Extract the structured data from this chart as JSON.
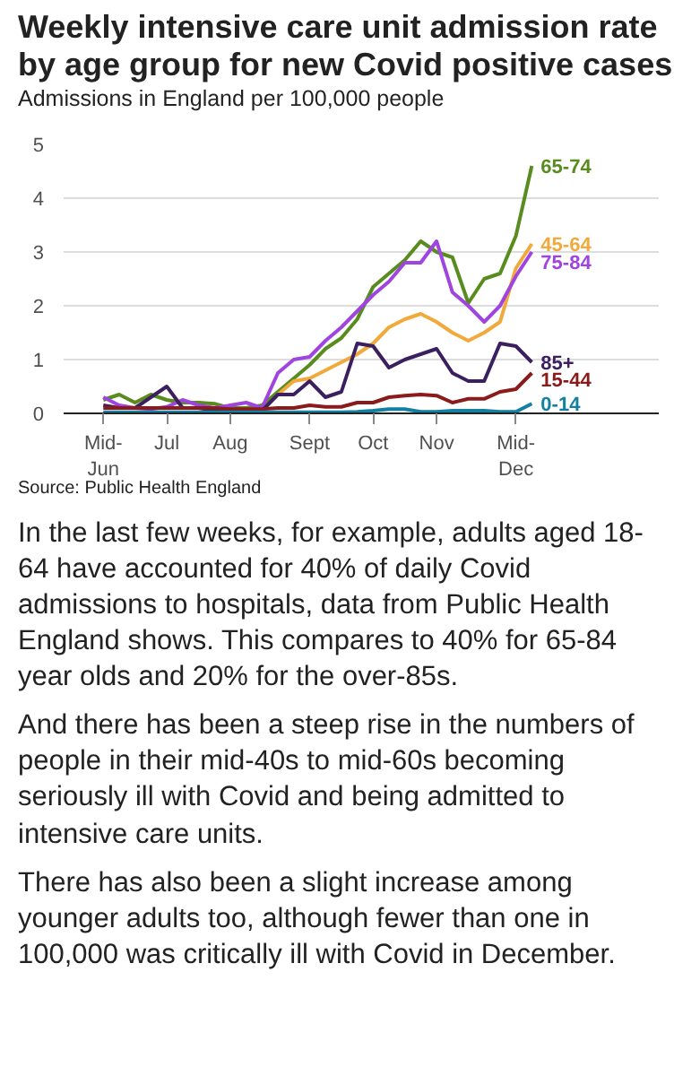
{
  "chart_data": {
    "type": "line",
    "title": "Weekly intensive care unit admission rate by age group for new Covid positive cases",
    "subtitle": "Admissions in England per 100,000 people",
    "categories": [
      "Mid-Jun",
      null,
      null,
      null,
      "Jul",
      null,
      null,
      null,
      "Aug",
      null,
      null,
      null,
      null,
      "Sept",
      null,
      null,
      null,
      "Oct",
      null,
      null,
      null,
      "Nov",
      null,
      null,
      null,
      null,
      "Mid-Dec",
      null
    ],
    "ylim": [
      0,
      5
    ],
    "yticks": [
      0,
      1,
      2,
      3,
      4,
      5
    ],
    "grid": "y",
    "series": [
      {
        "name": "65-74",
        "color": "#588c1e",
        "values": [
          0.25,
          0.35,
          0.2,
          0.35,
          0.25,
          0.2,
          0.2,
          0.18,
          0.1,
          0.1,
          0.15,
          0.4,
          0.65,
          0.9,
          1.2,
          1.4,
          1.75,
          2.35,
          2.6,
          2.85,
          3.2,
          3.0,
          2.9,
          2.05,
          2.5,
          2.6,
          3.3,
          4.6
        ]
      },
      {
        "name": "45-64",
        "color": "#f2a93b",
        "values": [
          null,
          null,
          null,
          null,
          null,
          null,
          null,
          null,
          null,
          null,
          null,
          0.35,
          0.6,
          0.65,
          0.8,
          0.95,
          1.1,
          1.3,
          1.6,
          1.75,
          1.85,
          1.7,
          1.5,
          1.35,
          1.5,
          1.7,
          2.7,
          3.15
        ]
      },
      {
        "name": "75-84",
        "color": "#a044e0",
        "values": [
          0.3,
          0.15,
          0.1,
          0.08,
          0.12,
          0.25,
          0.15,
          0.1,
          0.15,
          0.2,
          0.1,
          0.75,
          1.0,
          1.05,
          1.35,
          1.6,
          1.9,
          2.2,
          2.45,
          2.8,
          2.8,
          3.2,
          2.25,
          2.0,
          1.7,
          2.0,
          2.55,
          3.0
        ]
      },
      {
        "name": "85+",
        "color": "#3b1f5f",
        "values": [
          0.15,
          0.1,
          0.1,
          0.3,
          0.5,
          0.1,
          0.1,
          0.05,
          0.05,
          0.05,
          0.05,
          0.35,
          0.35,
          0.6,
          0.3,
          0.4,
          1.3,
          1.25,
          0.85,
          1.0,
          1.1,
          1.2,
          0.75,
          0.6,
          0.6,
          1.3,
          1.25,
          0.95
        ]
      },
      {
        "name": "15-44",
        "color": "#8b1a1a",
        "values": [
          0.1,
          0.1,
          0.1,
          0.1,
          0.1,
          0.1,
          0.1,
          0.1,
          0.08,
          0.08,
          0.08,
          0.1,
          0.1,
          0.15,
          0.12,
          0.12,
          0.2,
          0.2,
          0.3,
          0.33,
          0.35,
          0.33,
          0.2,
          0.27,
          0.27,
          0.4,
          0.45,
          0.75
        ]
      },
      {
        "name": "0-14",
        "color": "#1380a1",
        "values": [
          0.02,
          0.02,
          0.02,
          0.02,
          0.02,
          0.02,
          0.02,
          0.02,
          0.02,
          0.02,
          0.02,
          0.02,
          0.02,
          0.02,
          0.02,
          0.02,
          0.03,
          0.05,
          0.08,
          0.08,
          0.03,
          0.03,
          0.05,
          0.05,
          0.05,
          0.03,
          0.03,
          0.18
        ]
      }
    ],
    "annotations": [
      "Source: Public Health England",
      "In the last few weeks, for example, adults aged 18-64 have accounted for 40% of daily Covid admissions to hospitals, data from Public Health England shows. This compares to 40% for 65-84 year olds and 20% for the over-85s.",
      "And there has been a steep rise in the numbers of people in their mid-40s to mid-60s becoming seriously ill with Covid and being admitted to intensive care units.",
      "There has also been a slight increase among younger adults too, although fewer than one in 100,000 was critically ill with Covid in December."
    ]
  }
}
